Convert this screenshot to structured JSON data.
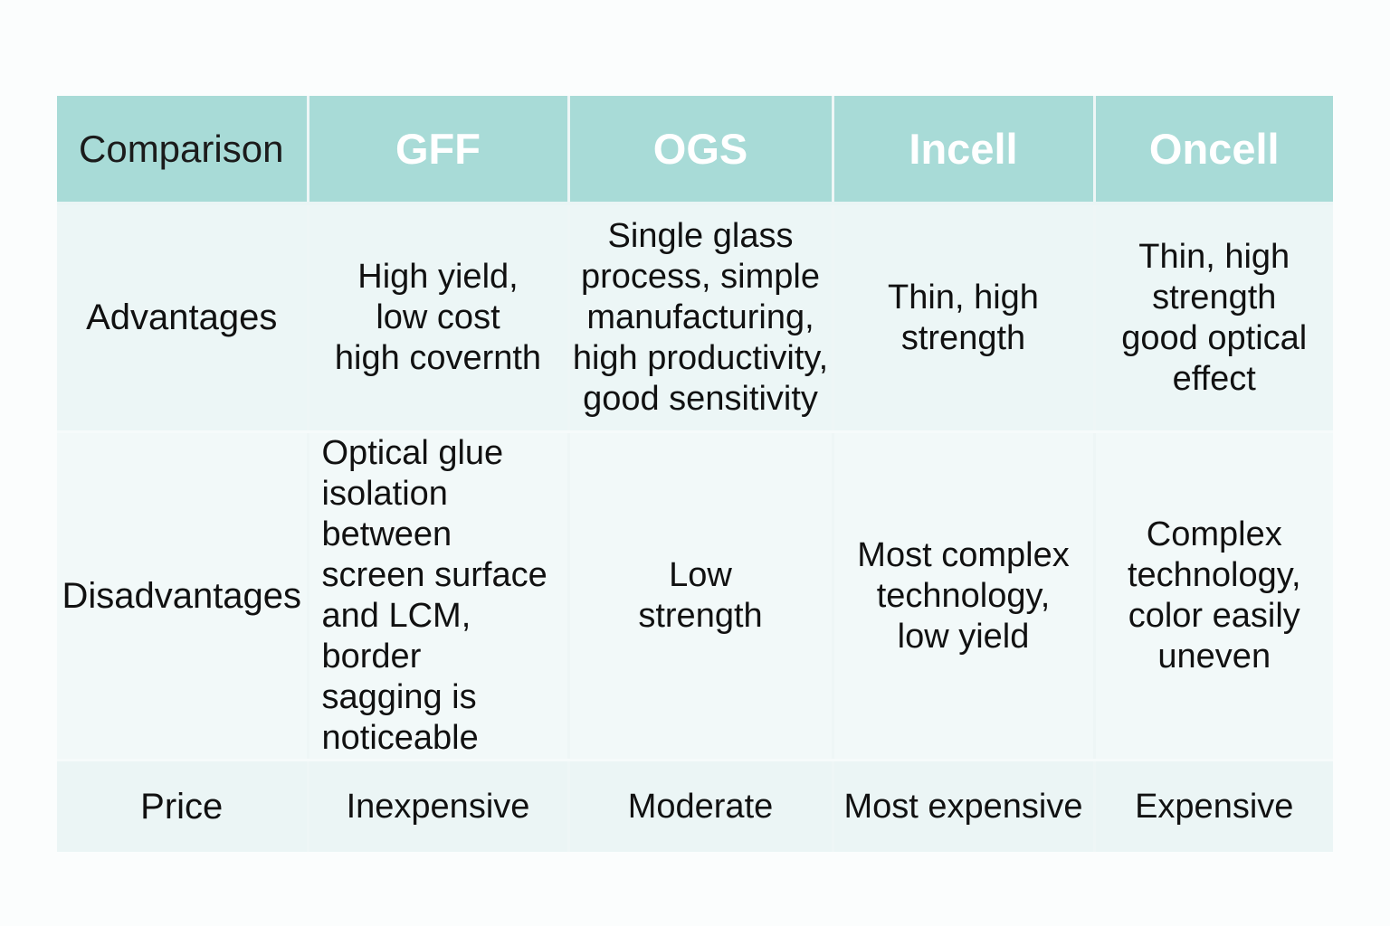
{
  "table": {
    "headers": [
      "Comparison",
      "GFF",
      "OGS",
      "Incell",
      "Oncell"
    ],
    "rows": [
      {
        "label": "Advantages",
        "cells": [
          "High yield,\nlow cost\nhigh covernth",
          "Single glass\nprocess, simple\nmanufacturing,\nhigh productivity,\ngood sensitivity",
          "Thin, high\nstrength",
          "Thin, high\nstrength\ngood optical\neffect"
        ]
      },
      {
        "label": "Disadvantages",
        "cells": [
          "Optical glue\nisolation between\nscreen surface\nand LCM, border\nsagging is\nnoticeable",
          "Low\nstrength",
          "Most complex\ntechnology,\nlow yield",
          "Complex\ntechnology,\ncolor easily\nuneven"
        ]
      },
      {
        "label": "Price",
        "cells": [
          "Inexpensive",
          "Moderate",
          "Most expensive",
          "Expensive"
        ]
      }
    ]
  },
  "colors": {
    "header_bg": "#a8dbd7",
    "header_text": "#ffffff",
    "row_bg": "#ecf6f6",
    "body_text": "#111111"
  }
}
